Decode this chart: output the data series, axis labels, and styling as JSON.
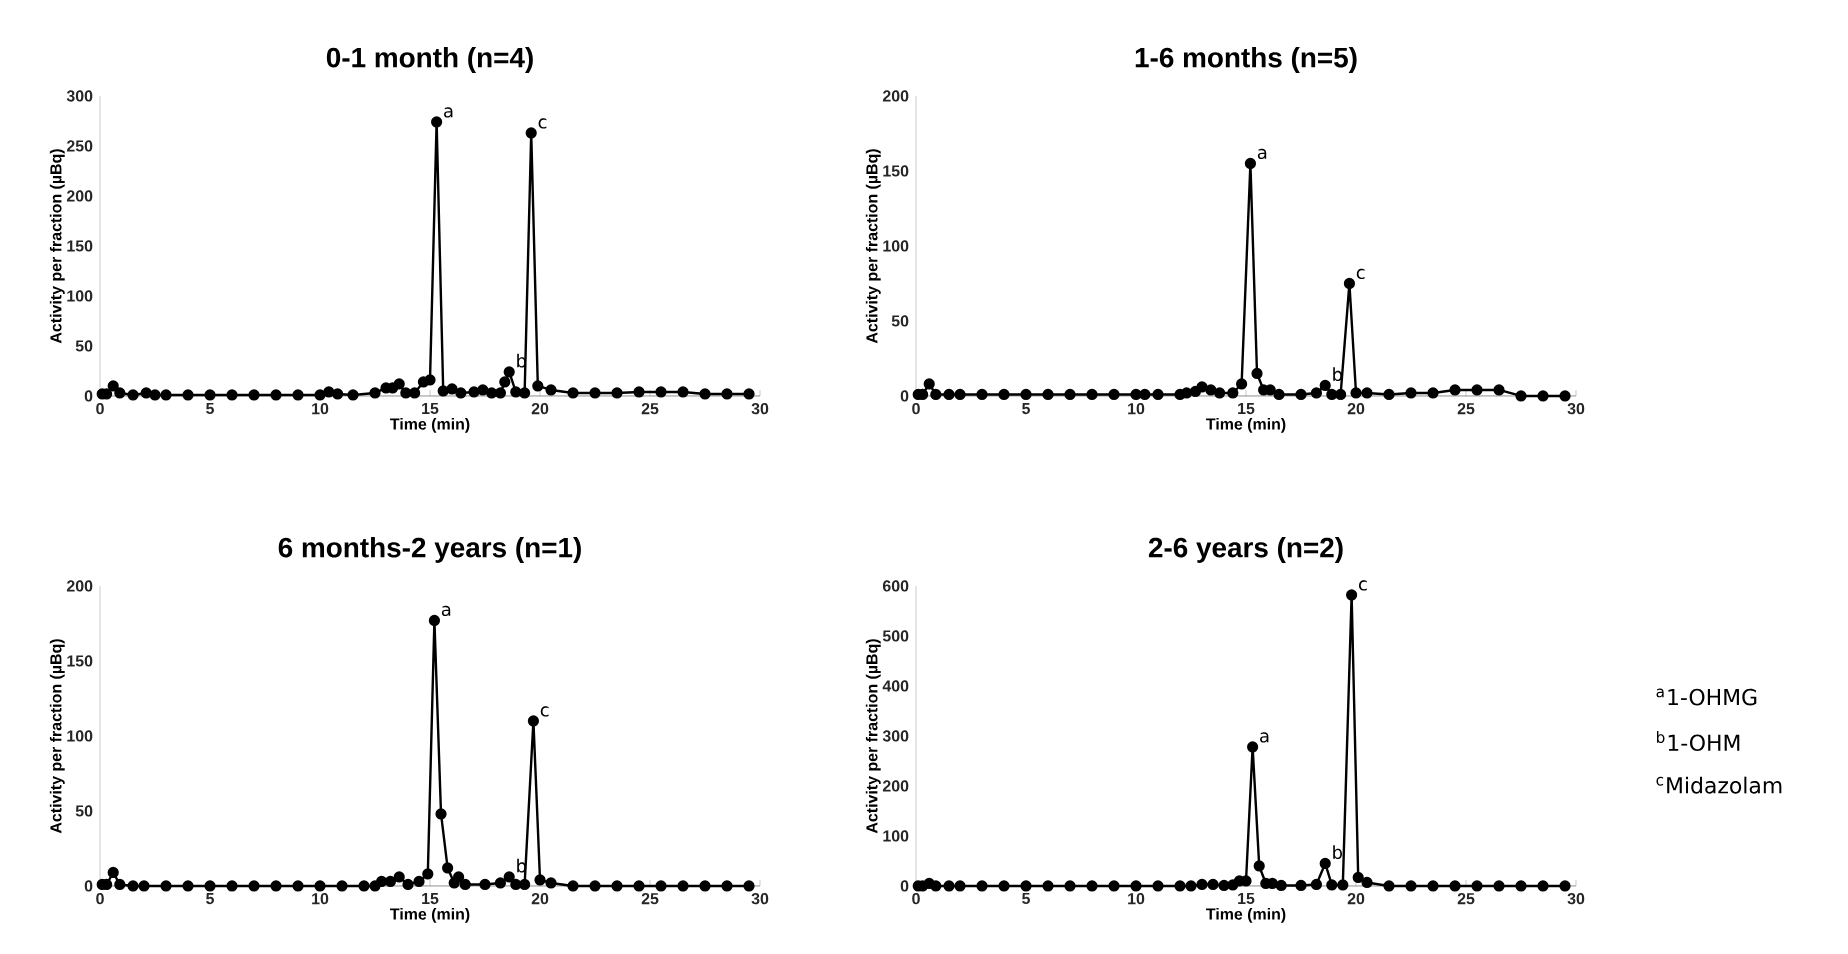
{
  "chart_data": [
    {
      "type": "line",
      "title": "0-1 month (n=4)",
      "xlabel": "Time (min)",
      "ylabel": "Activity per fraction (µBq)",
      "color": "#000000",
      "marker": "circle",
      "line_style": "solid",
      "x": [
        0.1,
        0.3,
        0.6,
        0.9,
        1.5,
        2.1,
        2.5,
        3,
        4,
        5,
        6,
        7,
        8,
        9,
        10,
        10.4,
        10.8,
        11.5,
        12.5,
        13,
        13.3,
        13.6,
        13.9,
        14.3,
        14.7,
        15.0,
        15.3,
        15.6,
        16.0,
        16.4,
        17.0,
        17.4,
        17.8,
        18.2,
        18.4,
        18.6,
        18.9,
        19.3,
        19.6,
        19.9,
        20.5,
        21.5,
        22.5,
        23.5,
        24.5,
        25.5,
        26.5,
        27.5,
        28.5,
        29.5
      ],
      "values": [
        2,
        2,
        10,
        3,
        1,
        3,
        1,
        1,
        1,
        1,
        1,
        1,
        1,
        1,
        1,
        4,
        2,
        1,
        3,
        8,
        8,
        12,
        3,
        3,
        14,
        16,
        274,
        5,
        7,
        3,
        4,
        6,
        3,
        3,
        14,
        24,
        4,
        3,
        263,
        10,
        6,
        3,
        3,
        3,
        4,
        4,
        4,
        2,
        2,
        2
      ],
      "xlim": [
        0,
        30
      ],
      "ylim": [
        0,
        300
      ],
      "xticks": [
        0,
        5,
        10,
        15,
        20,
        25,
        30
      ],
      "yticks": [
        0,
        50,
        100,
        150,
        200,
        250,
        300
      ],
      "annotations": [
        {
          "text": "a",
          "x": 15.3,
          "y": 274
        },
        {
          "text": "b",
          "x": 18.6,
          "y": 24
        },
        {
          "text": "c",
          "x": 19.6,
          "y": 263
        }
      ]
    },
    {
      "type": "line",
      "title": "1-6 months (n=5)",
      "xlabel": "Time (min)",
      "ylabel": "Activity per fraction (µBq)",
      "color": "#000000",
      "marker": "circle",
      "line_style": "solid",
      "x": [
        0.1,
        0.3,
        0.6,
        0.9,
        1.5,
        2,
        3,
        4,
        5,
        6,
        7,
        8,
        9,
        10,
        10.4,
        11,
        12,
        12.3,
        12.7,
        13.0,
        13.4,
        13.8,
        14.4,
        14.8,
        15.2,
        15.5,
        15.8,
        16.1,
        16.5,
        17.5,
        18.2,
        18.6,
        18.9,
        19.3,
        19.7,
        20.0,
        20.5,
        21.5,
        22.5,
        23.5,
        24.5,
        25.5,
        26.5,
        27.5,
        28.5,
        29.5
      ],
      "values": [
        1,
        1,
        8,
        1,
        1,
        1,
        1,
        1,
        1,
        1,
        1,
        1,
        1,
        1,
        1,
        1,
        1,
        2,
        3,
        6,
        4,
        2,
        2,
        8,
        155,
        15,
        4,
        4,
        1,
        1,
        2,
        7,
        1,
        1,
        75,
        2,
        2,
        1,
        2,
        2,
        4,
        4,
        4,
        0,
        0,
        0
      ],
      "xlim": [
        0,
        30
      ],
      "ylim": [
        0,
        200
      ],
      "xticks": [
        0,
        5,
        10,
        15,
        20,
        25,
        30
      ],
      "yticks": [
        0,
        50,
        100,
        150,
        200
      ],
      "annotations": [
        {
          "text": "a",
          "x": 15.2,
          "y": 155
        },
        {
          "text": "b",
          "x": 18.6,
          "y": 7
        },
        {
          "text": "c",
          "x": 19.7,
          "y": 75
        }
      ]
    },
    {
      "type": "line",
      "title": "6 months-2 years (n=1)",
      "xlabel": "Time (min)",
      "ylabel": "Activity per fraction (µBq)",
      "color": "#000000",
      "marker": "circle",
      "line_style": "solid",
      "x": [
        0.1,
        0.3,
        0.6,
        0.9,
        1.5,
        2,
        3,
        4,
        5,
        6,
        7,
        8,
        9,
        10,
        11,
        12,
        12.5,
        12.8,
        13.2,
        13.6,
        14.0,
        14.5,
        14.9,
        15.2,
        15.5,
        15.8,
        16.1,
        16.3,
        16.6,
        17.5,
        18.2,
        18.6,
        18.9,
        19.3,
        19.7,
        20.0,
        20.5,
        21.5,
        22.5,
        23.5,
        24.5,
        25.5,
        26.5,
        27.5,
        28.5,
        29.5
      ],
      "values": [
        1,
        1,
        9,
        1,
        0,
        0,
        0,
        0,
        0,
        0,
        0,
        0,
        0,
        0,
        0,
        0,
        0,
        3,
        3,
        6,
        1,
        3,
        8,
        177,
        48,
        12,
        2,
        6,
        1,
        1,
        2,
        6,
        1,
        1,
        110,
        4,
        2,
        0,
        0,
        0,
        0,
        0,
        0,
        0,
        0,
        0
      ],
      "xlim": [
        0,
        30
      ],
      "ylim": [
        0,
        200
      ],
      "xticks": [
        0,
        5,
        10,
        15,
        20,
        25,
        30
      ],
      "yticks": [
        0,
        50,
        100,
        150,
        200
      ],
      "annotations": [
        {
          "text": "a",
          "x": 15.2,
          "y": 177
        },
        {
          "text": "b",
          "x": 18.6,
          "y": 6
        },
        {
          "text": "c",
          "x": 19.7,
          "y": 110
        }
      ]
    },
    {
      "type": "line",
      "title": "2-6 years (n=2)",
      "xlabel": "Time (min)",
      "ylabel": "Activity per fraction (µBq)",
      "color": "#000000",
      "marker": "circle",
      "line_style": "solid",
      "x": [
        0.1,
        0.3,
        0.6,
        0.9,
        1.5,
        2,
        3,
        4,
        5,
        6,
        7,
        8,
        9,
        10,
        11,
        12,
        12.5,
        13.0,
        13.5,
        14.0,
        14.4,
        14.7,
        15.0,
        15.3,
        15.6,
        15.9,
        16.2,
        16.6,
        17.5,
        18.2,
        18.6,
        18.9,
        19.4,
        19.8,
        20.1,
        20.5,
        21.5,
        22.5,
        23.5,
        24.5,
        25.5,
        26.5,
        27.5,
        28.5,
        29.5
      ],
      "values": [
        0,
        0,
        5,
        0,
        0,
        0,
        0,
        0,
        0,
        0,
        0,
        0,
        0,
        0,
        0,
        0,
        0,
        3,
        3,
        1,
        2,
        10,
        10,
        278,
        40,
        5,
        5,
        1,
        1,
        3,
        45,
        2,
        2,
        582,
        17,
        7,
        0,
        0,
        0,
        0,
        0,
        0,
        0,
        0,
        0
      ],
      "xlim": [
        0,
        30
      ],
      "ylim": [
        0,
        600
      ],
      "xticks": [
        0,
        5,
        10,
        15,
        20,
        25,
        30
      ],
      "yticks": [
        0,
        100,
        200,
        300,
        400,
        500,
        600
      ],
      "annotations": [
        {
          "text": "a",
          "x": 15.3,
          "y": 278
        },
        {
          "text": "b",
          "x": 18.6,
          "y": 45
        },
        {
          "text": "c",
          "x": 19.8,
          "y": 582
        },
        "$^{a}$1-OHMG",
        "$^{b}$1-OHM",
        "$^{c}$Midazolam"
      ]
    }
  ]
}
